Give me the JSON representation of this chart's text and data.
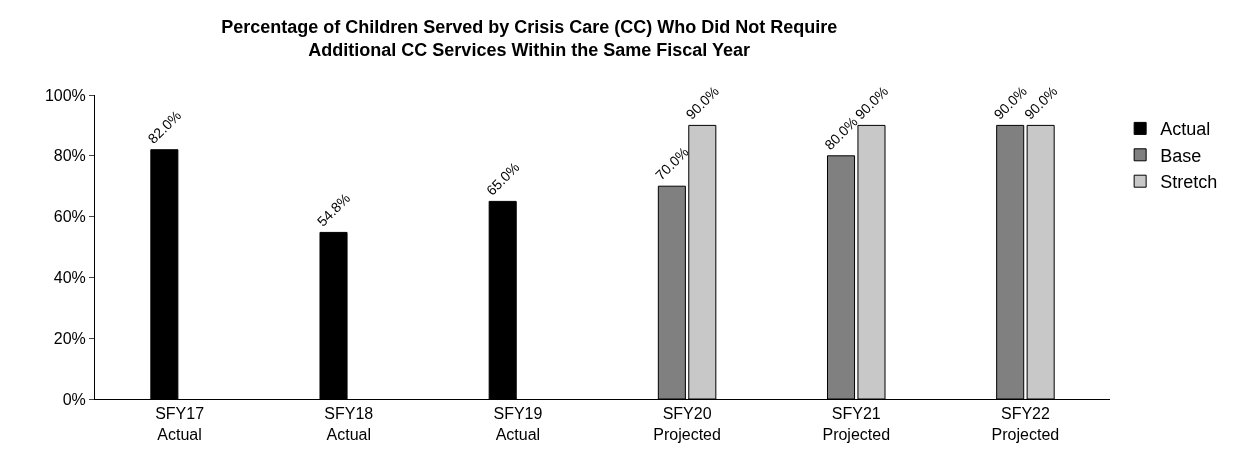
{
  "chart_data": {
    "type": "bar",
    "title": "Percentage of Children Served by Crisis Care (CC) Who Did Not Require\nAdditional CC Services Within the Same Fiscal Year",
    "categories": [
      "SFY17\nActual",
      "SFY18\nActual",
      "SFY19\nActual",
      "SFY20\nProjected",
      "SFY21\nProjected",
      "SFY22\nProjected"
    ],
    "series": [
      {
        "name": "Actual",
        "color": "#000000",
        "values": [
          82.0,
          54.8,
          65.0,
          null,
          null,
          null
        ],
        "value_labels": [
          "82.0%",
          "54.8%",
          "65.0%",
          null,
          null,
          null
        ]
      },
      {
        "name": "Base",
        "color": "#808080",
        "values": [
          null,
          null,
          null,
          70.0,
          80.0,
          90.0
        ],
        "value_labels": [
          null,
          null,
          null,
          "70.0%",
          "80.0%",
          "90.0%"
        ]
      },
      {
        "name": "Stretch",
        "color": "#c8c8c8",
        "values": [
          null,
          null,
          null,
          90.0,
          90.0,
          90.0
        ],
        "value_labels": [
          null,
          null,
          null,
          "90.0%",
          "90.0%",
          "90.0%"
        ]
      }
    ],
    "ylim": [
      0,
      100
    ],
    "yticks": [
      {
        "value": 0,
        "label": "0%"
      },
      {
        "value": 20,
        "label": "20%"
      },
      {
        "value": 40,
        "label": "40%"
      },
      {
        "value": 60,
        "label": "60%"
      },
      {
        "value": 80,
        "label": "80%"
      },
      {
        "value": 100,
        "label": "100%"
      }
    ],
    "grid": false,
    "legend": "right"
  }
}
